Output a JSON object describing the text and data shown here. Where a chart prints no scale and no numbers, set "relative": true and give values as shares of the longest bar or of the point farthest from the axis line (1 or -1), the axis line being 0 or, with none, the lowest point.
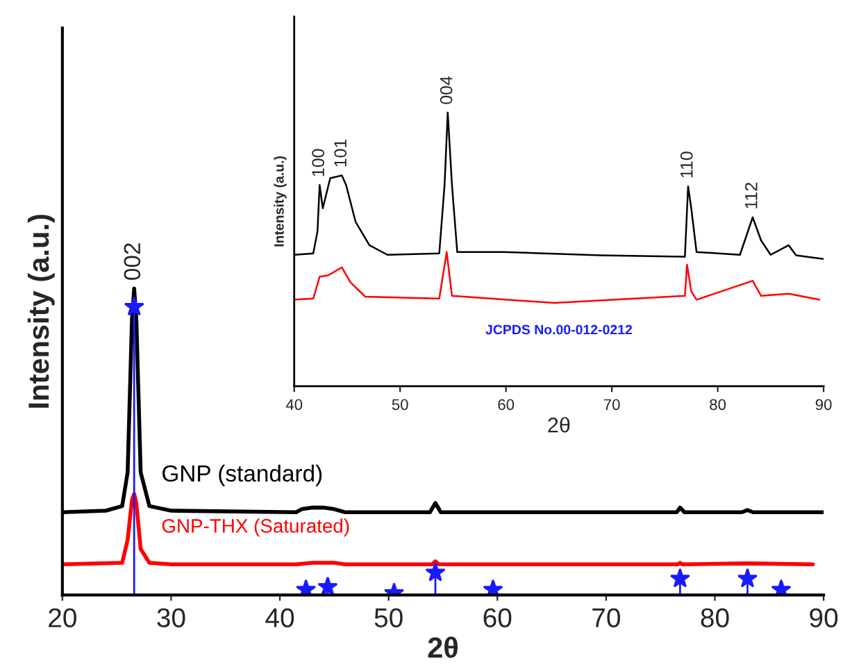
{
  "chart_data": [
    {
      "type": "line",
      "relative": true,
      "xlabel": "2θ",
      "ylabel": "Intensity (a.u.)",
      "xlim": [
        20,
        90
      ],
      "xticks": [
        20,
        30,
        40,
        50,
        60,
        70,
        80,
        90
      ],
      "tick_labels": "x",
      "series": [
        {
          "name": "GNP (standard)",
          "color": "#000000",
          "x": [
            20,
            24,
            25.5,
            26.0,
            26.4,
            26.6,
            26.8,
            27.2,
            28,
            30,
            41.5,
            42,
            43,
            44,
            45,
            46,
            53.8,
            54.3,
            54.8,
            76.5,
            76.8,
            77.2,
            82.5,
            83,
            83.5,
            90
          ],
          "values": [
            0.27,
            0.275,
            0.29,
            0.4,
            0.9,
            1.0,
            0.9,
            0.4,
            0.29,
            0.275,
            0.27,
            0.28,
            0.285,
            0.285,
            0.28,
            0.27,
            0.27,
            0.3,
            0.27,
            0.27,
            0.285,
            0.27,
            0.27,
            0.277,
            0.27,
            0.27
          ]
        },
        {
          "name": "GNP-THX (Saturated)",
          "color": "#ff0000",
          "x": [
            20,
            25.5,
            26.0,
            26.4,
            26.6,
            26.8,
            27.2,
            28,
            30,
            41.5,
            43,
            45,
            46,
            54,
            54.3,
            54.6,
            76.6,
            76.8,
            77,
            83,
            89
          ],
          "values": [
            0.1,
            0.105,
            0.18,
            0.31,
            0.33,
            0.3,
            0.15,
            0.105,
            0.1,
            0.1,
            0.105,
            0.105,
            0.1,
            0.1,
            0.11,
            0.1,
            0.1,
            0.105,
            0.1,
            0.103,
            0.1
          ]
        },
        {
          "type": "lollipop",
          "color": "#1a1aff",
          "marker": "star",
          "x": [
            26.6,
            42.4,
            44.4,
            50.5,
            54.3,
            59.6,
            76.8,
            83.0,
            86.1
          ],
          "values": [
            0.94,
            0.017,
            0.026,
            0.006,
            0.073,
            0.017,
            0.053,
            0.053,
            0.017
          ]
        }
      ],
      "annotations": [
        {
          "text": "002",
          "x": 26.6,
          "y": 1.0
        }
      ]
    },
    {
      "type": "line",
      "relative": true,
      "xlabel": "2θ",
      "ylabel": "Intensity (a.u.)",
      "xlim": [
        40,
        90
      ],
      "xticks": [
        40,
        50,
        60,
        70,
        80,
        90
      ],
      "tick_labels": "x",
      "series": [
        {
          "color": "#000000",
          "x": [
            40,
            41.8,
            42.2,
            42.4,
            42.7,
            43.4,
            44.5,
            44.9,
            45.8,
            47.1,
            48.8,
            53.7,
            54.2,
            54.5,
            54.9,
            55.4,
            59.8,
            69.0,
            76.9,
            77.2,
            77.5,
            78.0,
            82.1,
            83.3,
            84.1,
            85.0,
            86.7,
            87.4,
            90.0
          ],
          "values": [
            0.48,
            0.485,
            0.566,
            0.735,
            0.65,
            0.76,
            0.77,
            0.735,
            0.6,
            0.515,
            0.48,
            0.485,
            0.735,
            1.0,
            0.735,
            0.49,
            0.49,
            0.478,
            0.473,
            0.73,
            0.65,
            0.49,
            0.48,
            0.617,
            0.532,
            0.48,
            0.515,
            0.478,
            0.465
          ]
        },
        {
          "color": "#ff0000",
          "x": [
            40,
            41.8,
            42.4,
            43.2,
            44.5,
            45.3,
            46.7,
            53.7,
            54.4,
            54.9,
            64.6,
            76.9,
            77.1,
            77.5,
            78.0,
            83.3,
            84.1,
            86.7,
            89.6
          ],
          "values": [
            0.316,
            0.32,
            0.4,
            0.405,
            0.434,
            0.38,
            0.327,
            0.32,
            0.49,
            0.33,
            0.304,
            0.33,
            0.444,
            0.346,
            0.316,
            0.385,
            0.33,
            0.338,
            0.316
          ]
        }
      ],
      "annotations": [
        {
          "text": "100",
          "x": 42.4,
          "y": 0.735
        },
        {
          "text": "101",
          "x": 44.5,
          "y": 0.77
        },
        {
          "text": "004",
          "x": 54.5,
          "y": 1.0
        },
        {
          "text": "110",
          "x": 77.2,
          "y": 0.73
        },
        {
          "text": "112",
          "x": 83.3,
          "y": 0.617
        },
        "JCPDS No.00-012-0212"
      ]
    }
  ]
}
